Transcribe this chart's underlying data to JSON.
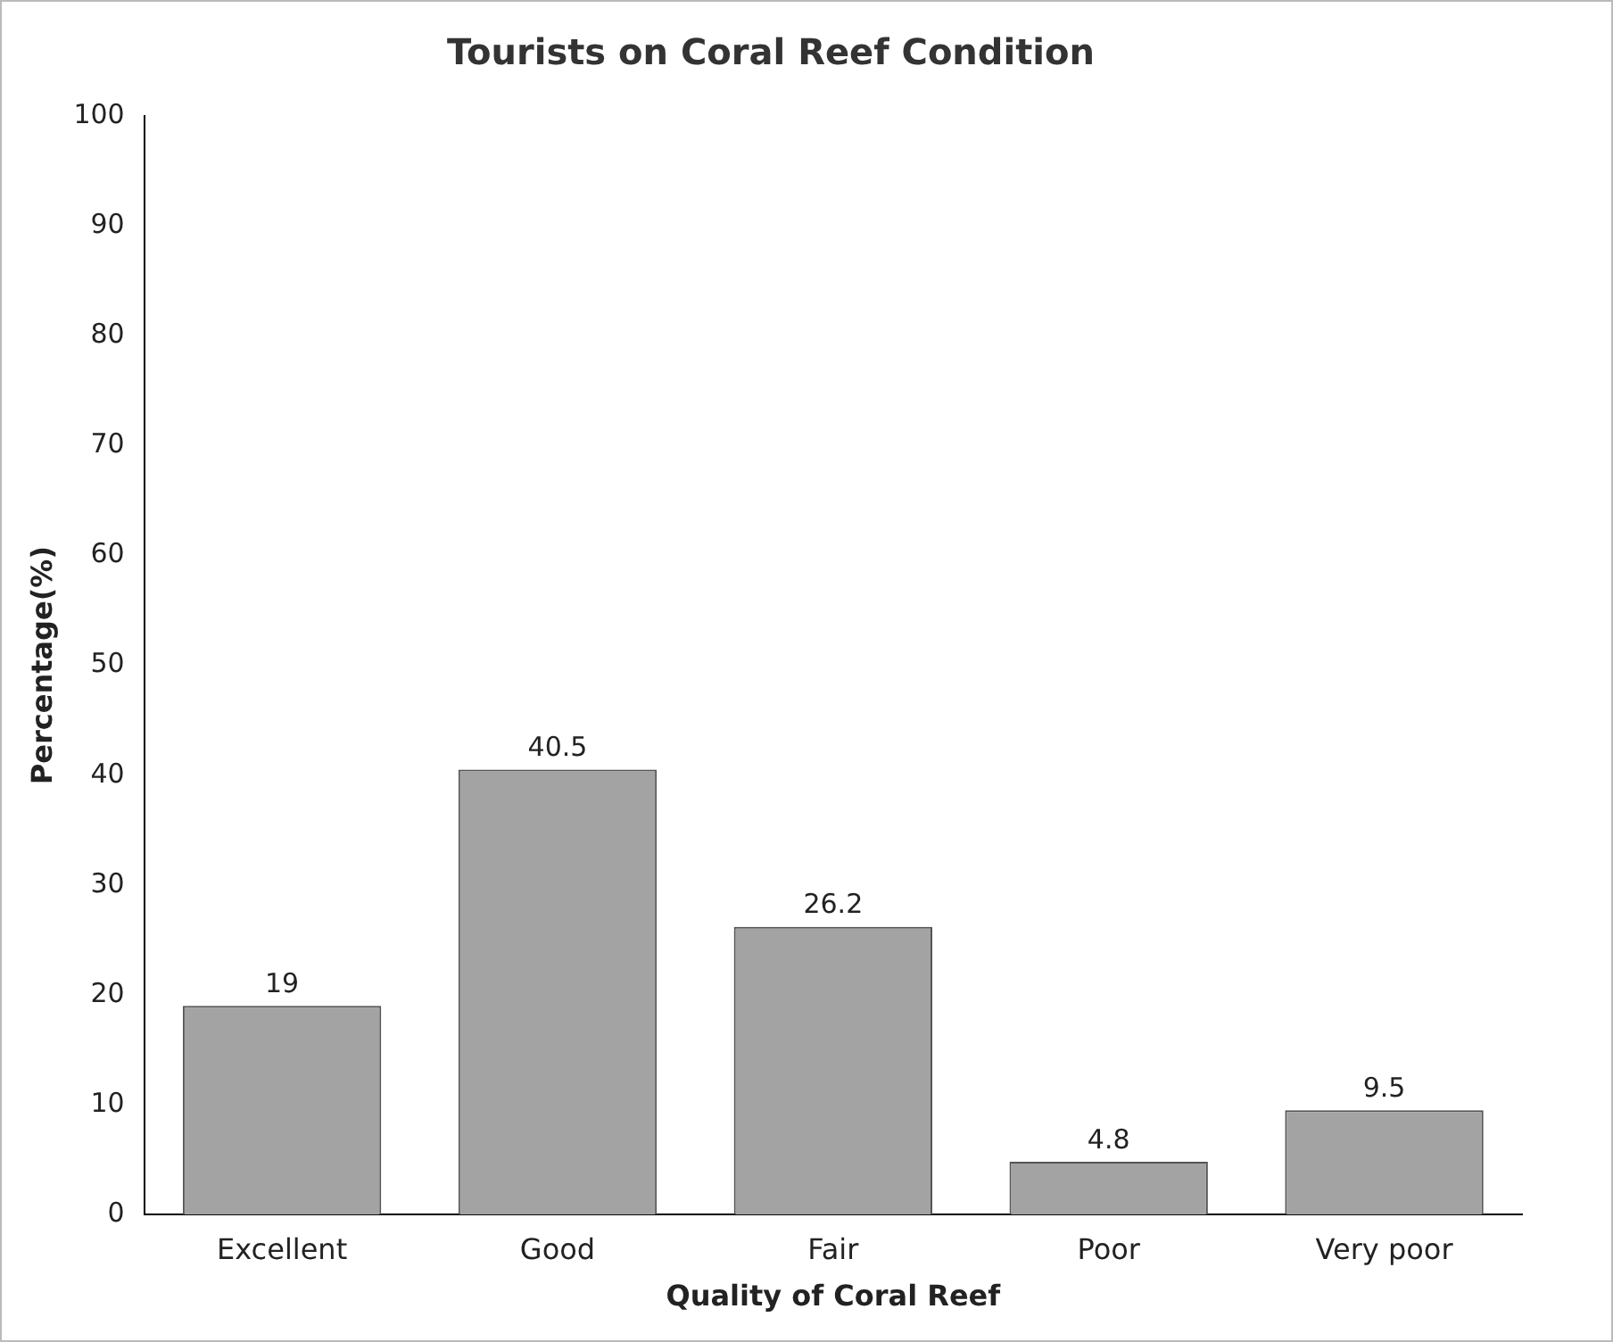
{
  "chart_data": {
    "type": "bar",
    "title": "Tourists on Coral Reef Condition",
    "xlabel": "Quality of Coral Reef",
    "ylabel": "Percentage(%)",
    "categories": [
      "Excellent",
      "Good",
      "Fair",
      "Poor",
      "Very poor"
    ],
    "values": [
      19,
      40.5,
      26.2,
      4.8,
      9.5
    ],
    "color": "#a3a3a3",
    "ylim": [
      0,
      100
    ],
    "yticks": [
      0,
      10,
      20,
      30,
      40,
      50,
      60,
      70,
      80,
      90,
      100
    ],
    "grid": false,
    "legend": false,
    "data_labels": true
  }
}
